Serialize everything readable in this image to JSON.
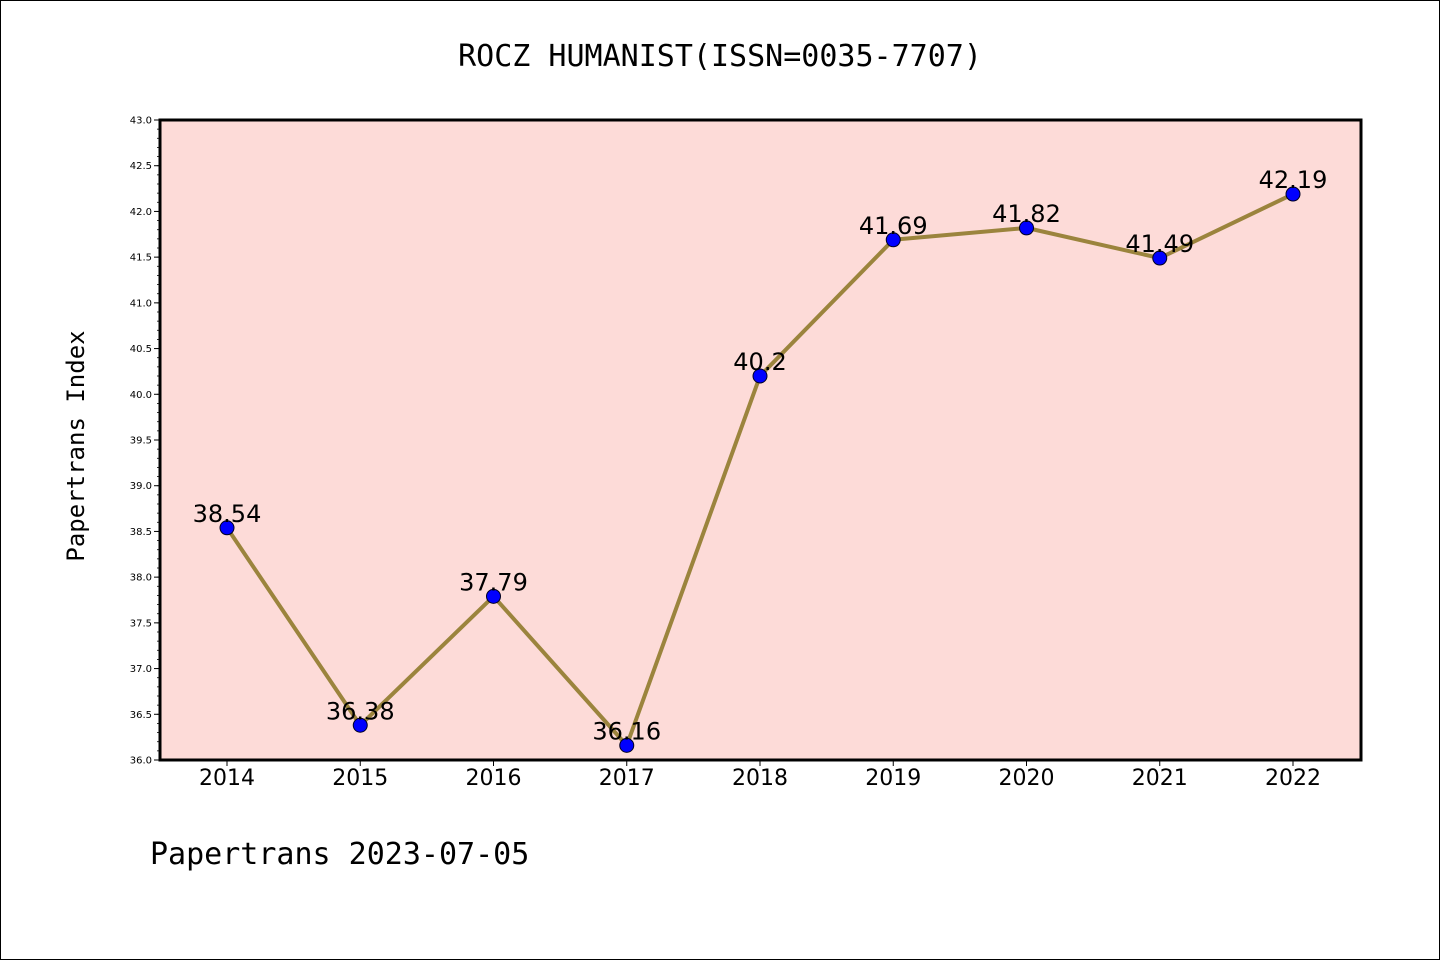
{
  "chart_data": {
    "type": "line",
    "title": "ROCZ HUMANIST(ISSN=0035-7707)",
    "ylabel": "Papertrans Index",
    "xlabel": "",
    "footer": "Papertrans 2023-07-05",
    "categories": [
      "2014",
      "2015",
      "2016",
      "2017",
      "2018",
      "2019",
      "2020",
      "2021",
      "2022"
    ],
    "values": [
      38.54,
      36.38,
      37.79,
      36.16,
      40.2,
      41.69,
      41.82,
      41.49,
      42.19
    ],
    "data_labels": [
      "38.54",
      "36.38",
      "37.79",
      "36.16",
      "40.2",
      "41.69",
      "41.82",
      "41.49",
      "42.19"
    ],
    "ylim": [
      36.0,
      43.0
    ],
    "yticks": [
      36.0,
      36.5,
      37.0,
      37.5,
      38.0,
      38.5,
      39.0,
      39.5,
      40.0,
      40.5,
      41.0,
      41.5,
      42.0,
      42.5,
      43.0
    ],
    "grid": false,
    "colors": {
      "plot_background": "#fddbd8",
      "line": "#9b843d",
      "marker": "#0000ff"
    }
  }
}
